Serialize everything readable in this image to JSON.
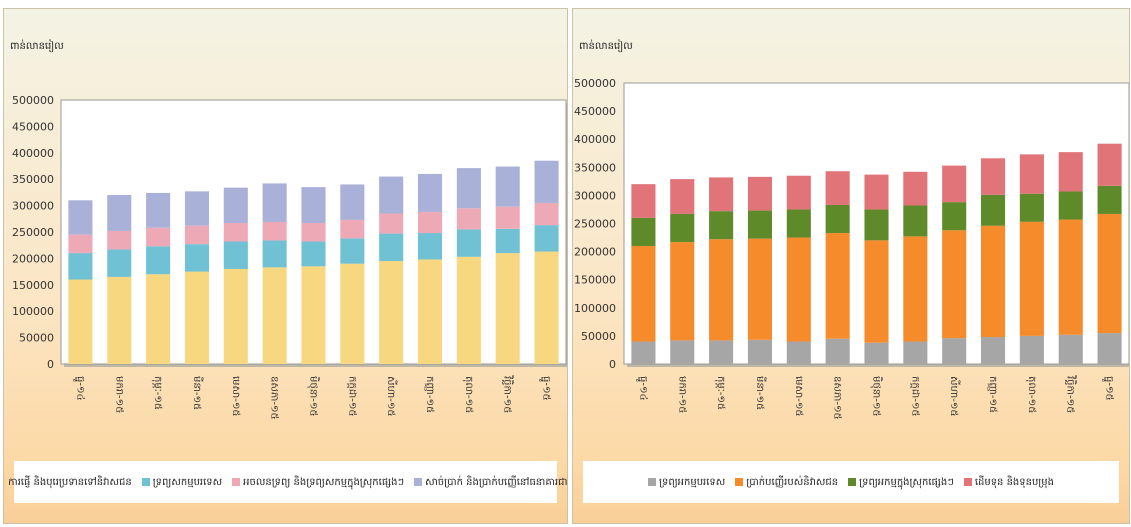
{
  "chart_data": [
    {
      "type": "bar",
      "stacked": true,
      "ylabel": "ពាន់លានរៀល",
      "ylim": [
        0,
        500000
      ],
      "yticks": [
        "0",
        "50000",
        "100000",
        "150000",
        "200000",
        "250000",
        "300000",
        "350000",
        "400000",
        "450000",
        "500000"
      ],
      "categories": [
        "ធ្នូ-១៤",
        "មករា-១៥",
        "កុម្ភៈ-១៥",
        "មីនា-១៥",
        "មេសា-១៥",
        "ឧសភា-១៥",
        "មិថុនា-១៥",
        "កក្កដា-១៥",
        "សីហា-១៥",
        "កញ្ញា-១៥",
        "តុលា-១៥",
        "វិច្ឆិកា-១៥",
        "ធ្នូ-១៥"
      ],
      "colors": [
        "#f7d77f",
        "#70c1d4",
        "#eea9b6",
        "#a9b1d8"
      ],
      "legend_position": "bottom",
      "grid": false,
      "series": [
        {
          "name": "ការផ្ញើ និងបុរេប្រទានទៅនិវាសជន",
          "values": [
            160000,
            165000,
            170000,
            175000,
            180000,
            183000,
            185000,
            190000,
            195000,
            198000,
            203000,
            210000,
            213000
          ]
        },
        {
          "name": "ទ្រព្យសកម្មបរទេស",
          "values": [
            50000,
            52000,
            53000,
            52000,
            52000,
            51000,
            47000,
            48000,
            52000,
            50000,
            52000,
            46000,
            50000
          ]
        },
        {
          "name": "អចលនទ្រព្យ និងទ្រព្យសកម្មក្នុងស្រុកផ្សេងៗ",
          "values": [
            35000,
            35000,
            35000,
            35000,
            35000,
            35000,
            35000,
            35000,
            38000,
            40000,
            40000,
            42000,
            42000
          ]
        },
        {
          "name": "សាច់ប្រាក់ និងប្រាក់បញ្ញើនៅធនាគារជាតិ",
          "values": [
            65000,
            68000,
            66000,
            65000,
            67000,
            73000,
            68000,
            67000,
            70000,
            72000,
            76000,
            76000,
            80000
          ]
        }
      ]
    },
    {
      "type": "bar",
      "stacked": true,
      "ylabel": "ពាន់លានរៀល",
      "ylim": [
        0,
        500000
      ],
      "yticks": [
        "0",
        "50000",
        "100000",
        "150000",
        "200000",
        "250000",
        "300000",
        "350000",
        "400000",
        "450000",
        "500000"
      ],
      "categories": [
        "ធ្នូ-១៤",
        "មករា-១៥",
        "កុម្ភៈ-១៥",
        "មីនា-១៥",
        "មេសា-១៥",
        "ឧសភា-១៥",
        "មិថុនា-១៥",
        "កក្កដា-១៥",
        "សីហា-១៥",
        "កញ្ញា-១៥",
        "តុលា-១៥",
        "វិច្ឆិកា-១៥",
        "ធ្នូ-១៥"
      ],
      "colors": [
        "#a6a6a6",
        "#f68b2c",
        "#5f8a2a",
        "#e07479"
      ],
      "legend_position": "bottom",
      "grid": false,
      "series": [
        {
          "name": "ទ្រព្យអកម្មបរទេស",
          "values": [
            40000,
            42000,
            42000,
            43000,
            40000,
            45000,
            38000,
            40000,
            46000,
            48000,
            50000,
            52000,
            55000
          ]
        },
        {
          "name": "ប្រាក់បញ្ញើរបស់និវាសជន",
          "values": [
            170000,
            175000,
            180000,
            180000,
            185000,
            188000,
            182000,
            187000,
            192000,
            198000,
            203000,
            205000,
            212000
          ]
        },
        {
          "name": "ទ្រព្យអកម្មក្នុងស្រុកផ្សេងៗ",
          "values": [
            50000,
            50000,
            50000,
            50000,
            50000,
            50000,
            55000,
            55000,
            50000,
            55000,
            50000,
            50000,
            50000
          ]
        },
        {
          "name": "ដើមទុន និងទុនបម្រុង",
          "values": [
            60000,
            62000,
            60000,
            60000,
            60000,
            60000,
            62000,
            60000,
            65000,
            65000,
            70000,
            70000,
            75000
          ]
        }
      ]
    }
  ]
}
